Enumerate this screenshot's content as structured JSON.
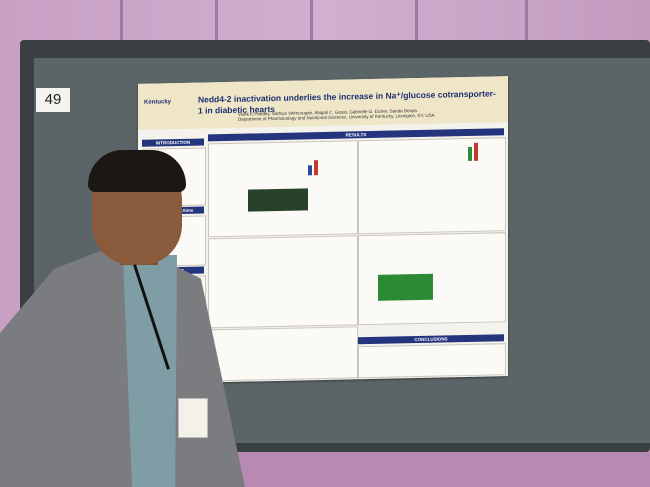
{
  "scene": {
    "board_number": "49",
    "poster": {
      "title_line1": "Nedd4-2 inactivation underlies the increase in Na⁺/glucose cotransporter-1 in",
      "title_line2": "diabetic hearts",
      "authors": "Vivek K.Pandey, Sathiya Velmurugan, Abigail C. Gasat, Gabrielle G. Eicher, Sanda Despa",
      "affiliation": "Department of Pharmacology and Nutritional Sciences, University of Kentucky, Lexington, KY, USA",
      "logo_text": "Kentucky",
      "sections": {
        "introduction": "INTRODUCTION",
        "results": "RESULTS",
        "methods": "METHODS",
        "hypothesis": "Hypothesis & Aims",
        "conclusions": "CONCLUSIONS"
      }
    }
  }
}
